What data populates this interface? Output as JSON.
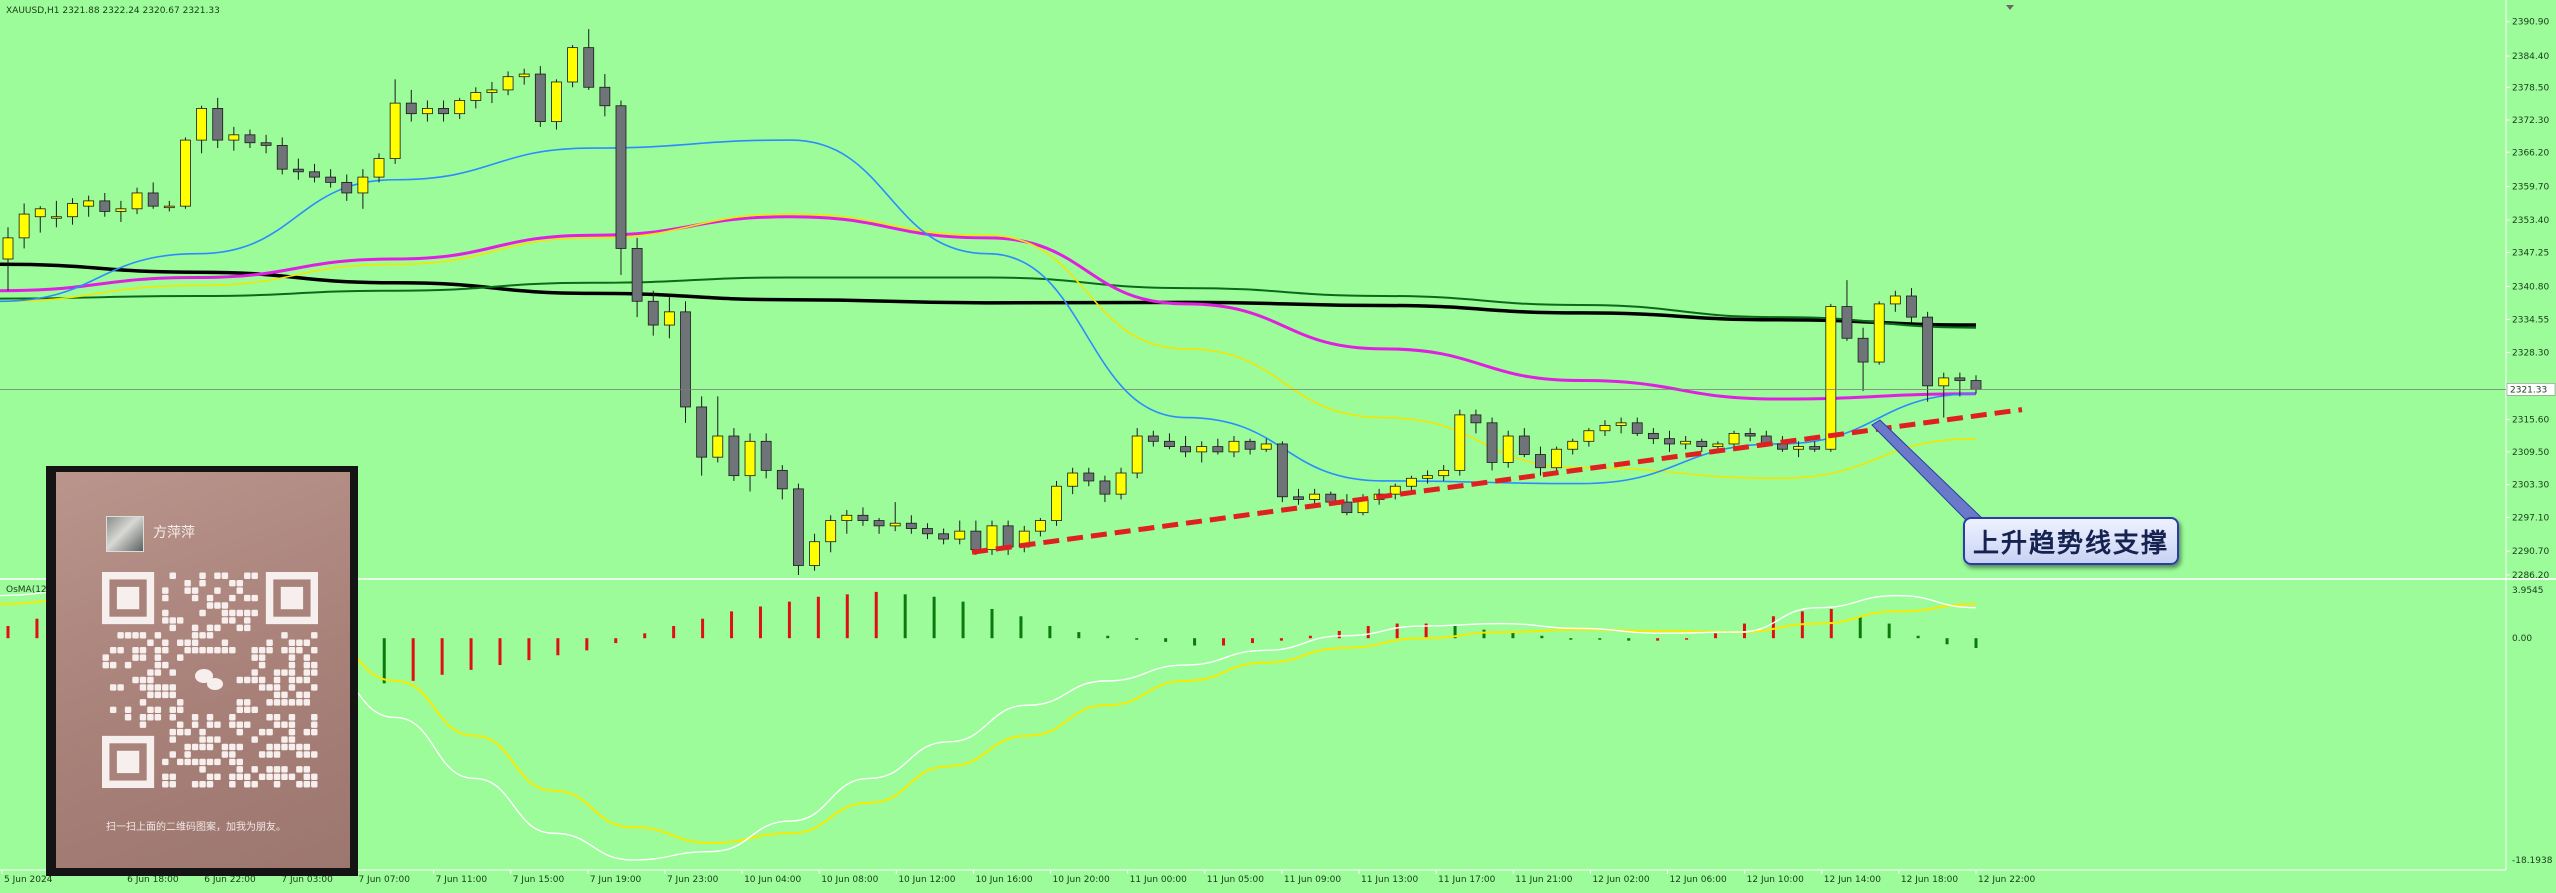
{
  "chart_data": [
    {
      "type": "candlestick",
      "symbol_header": "XAUUSD,H1  2321.88 2322.24 2320.67 2321.33",
      "ylim": [
        2286.2,
        2393.5
      ],
      "price_ticks": [
        "2390.90",
        "2384.40",
        "2378.50",
        "2372.30",
        "2366.20",
        "2359.70",
        "2353.40",
        "2347.25",
        "2340.80",
        "2334.55",
        "2328.30",
        "2315.60",
        "2309.50",
        "2303.30",
        "2297.10",
        "2290.70",
        "2286.20"
      ],
      "current_price": "2321.33",
      "current_price_value": 2321.33,
      "time_labels": [
        "5 Jun 2024",
        "6 Jun 18:00",
        "6 Jun 22:00",
        "7 Jun 03:00",
        "7 Jun 07:00",
        "7 Jun 11:00",
        "7 Jun 15:00",
        "7 Jun 19:00",
        "7 Jun 23:00",
        "10 Jun 04:00",
        "10 Jun 08:00",
        "10 Jun 12:00",
        "10 Jun 16:00",
        "10 Jun 20:00",
        "11 Jun 00:00",
        "11 Jun 05:00",
        "11 Jun 09:00",
        "11 Jun 13:00",
        "11 Jun 17:00",
        "11 Jun 21:00",
        "12 Jun 02:00",
        "12 Jun 06:00",
        "12 Jun 10:00",
        "12 Jun 14:00",
        "12 Jun 18:00",
        "12 Jun 22:00"
      ],
      "candles": [
        {
          "o": 2346.0,
          "h": 2352.0,
          "l": 2340.0,
          "c": 2350.0
        },
        {
          "o": 2350.0,
          "h": 2356.5,
          "l": 2348.0,
          "c": 2354.5
        },
        {
          "o": 2354.0,
          "h": 2356.0,
          "l": 2351.0,
          "c": 2355.5
        },
        {
          "o": 2354.0,
          "h": 2357.0,
          "l": 2352.0,
          "c": 2354.0
        },
        {
          "o": 2354.0,
          "h": 2357.5,
          "l": 2352.5,
          "c": 2356.5
        },
        {
          "o": 2356.0,
          "h": 2358.0,
          "l": 2354.0,
          "c": 2357.0
        },
        {
          "o": 2357.0,
          "h": 2358.5,
          "l": 2354.0,
          "c": 2355.0
        },
        {
          "o": 2355.0,
          "h": 2357.0,
          "l": 2353.0,
          "c": 2355.5
        },
        {
          "o": 2355.5,
          "h": 2359.5,
          "l": 2354.5,
          "c": 2358.5
        },
        {
          "o": 2358.5,
          "h": 2360.5,
          "l": 2355.5,
          "c": 2356.0
        },
        {
          "o": 2356.0,
          "h": 2357.0,
          "l": 2355.0,
          "c": 2356.0
        },
        {
          "o": 2356.0,
          "h": 2369.0,
          "l": 2355.5,
          "c": 2368.5
        },
        {
          "o": 2368.5,
          "h": 2375.0,
          "l": 2366.0,
          "c": 2374.5
        },
        {
          "o": 2374.5,
          "h": 2376.5,
          "l": 2367.0,
          "c": 2368.5
        },
        {
          "o": 2368.5,
          "h": 2371.0,
          "l": 2366.5,
          "c": 2369.5
        },
        {
          "o": 2369.5,
          "h": 2370.5,
          "l": 2367.0,
          "c": 2368.0
        },
        {
          "o": 2368.0,
          "h": 2369.5,
          "l": 2366.0,
          "c": 2367.5
        },
        {
          "o": 2367.5,
          "h": 2369.0,
          "l": 2362.0,
          "c": 2363.0
        },
        {
          "o": 2363.0,
          "h": 2365.0,
          "l": 2361.0,
          "c": 2362.5
        },
        {
          "o": 2362.5,
          "h": 2364.0,
          "l": 2360.5,
          "c": 2361.5
        },
        {
          "o": 2361.5,
          "h": 2363.0,
          "l": 2359.5,
          "c": 2360.5
        },
        {
          "o": 2360.5,
          "h": 2362.0,
          "l": 2357.0,
          "c": 2358.5
        },
        {
          "o": 2358.5,
          "h": 2363.0,
          "l": 2355.5,
          "c": 2361.5
        },
        {
          "o": 2361.5,
          "h": 2366.0,
          "l": 2360.5,
          "c": 2365.0
        },
        {
          "o": 2365.0,
          "h": 2380.0,
          "l": 2364.0,
          "c": 2375.5
        },
        {
          "o": 2375.5,
          "h": 2378.0,
          "l": 2372.0,
          "c": 2373.5
        },
        {
          "o": 2373.5,
          "h": 2376.0,
          "l": 2372.0,
          "c": 2374.5
        },
        {
          "o": 2374.5,
          "h": 2376.0,
          "l": 2372.0,
          "c": 2373.5
        },
        {
          "o": 2373.5,
          "h": 2376.5,
          "l": 2372.5,
          "c": 2376.0
        },
        {
          "o": 2376.0,
          "h": 2378.5,
          "l": 2374.5,
          "c": 2377.5
        },
        {
          "o": 2377.5,
          "h": 2379.5,
          "l": 2375.5,
          "c": 2378.0
        },
        {
          "o": 2378.0,
          "h": 2381.5,
          "l": 2377.0,
          "c": 2380.5
        },
        {
          "o": 2380.5,
          "h": 2382.0,
          "l": 2379.0,
          "c": 2381.0
        },
        {
          "o": 2381.0,
          "h": 2382.5,
          "l": 2371.0,
          "c": 2372.0
        },
        {
          "o": 2372.0,
          "h": 2380.0,
          "l": 2370.5,
          "c": 2379.5
        },
        {
          "o": 2379.5,
          "h": 2386.5,
          "l": 2378.5,
          "c": 2386.0
        },
        {
          "o": 2386.0,
          "h": 2389.5,
          "l": 2378.0,
          "c": 2378.5
        },
        {
          "o": 2378.5,
          "h": 2381.0,
          "l": 2373.0,
          "c": 2375.0
        },
        {
          "o": 2375.0,
          "h": 2376.0,
          "l": 2343.0,
          "c": 2348.0
        },
        {
          "o": 2348.0,
          "h": 2350.0,
          "l": 2335.0,
          "c": 2338.0
        },
        {
          "o": 2338.0,
          "h": 2340.0,
          "l": 2331.5,
          "c": 2333.5
        },
        {
          "o": 2333.5,
          "h": 2339.0,
          "l": 2331.0,
          "c": 2336.0
        },
        {
          "o": 2336.0,
          "h": 2338.0,
          "l": 2315.0,
          "c": 2318.0
        },
        {
          "o": 2318.0,
          "h": 2320.0,
          "l": 2305.0,
          "c": 2308.5
        },
        {
          "o": 2308.5,
          "h": 2320.0,
          "l": 2307.5,
          "c": 2312.5
        },
        {
          "o": 2312.5,
          "h": 2314.0,
          "l": 2304.0,
          "c": 2305.0
        },
        {
          "o": 2305.0,
          "h": 2313.0,
          "l": 2302.0,
          "c": 2311.5
        },
        {
          "o": 2311.5,
          "h": 2313.0,
          "l": 2304.5,
          "c": 2306.0
        },
        {
          "o": 2306.0,
          "h": 2307.0,
          "l": 2300.5,
          "c": 2302.5
        },
        {
          "o": 2302.5,
          "h": 2303.5,
          "l": 2286.2,
          "c": 2288.0
        },
        {
          "o": 2288.0,
          "h": 2294.0,
          "l": 2287.0,
          "c": 2292.5
        },
        {
          "o": 2292.5,
          "h": 2297.5,
          "l": 2290.5,
          "c": 2296.5
        },
        {
          "o": 2296.5,
          "h": 2298.5,
          "l": 2294.0,
          "c": 2297.5
        },
        {
          "o": 2297.5,
          "h": 2299.0,
          "l": 2295.5,
          "c": 2296.5
        },
        {
          "o": 2296.5,
          "h": 2297.0,
          "l": 2294.0,
          "c": 2295.5
        },
        {
          "o": 2295.5,
          "h": 2300.0,
          "l": 2294.5,
          "c": 2296.0
        },
        {
          "o": 2296.0,
          "h": 2297.5,
          "l": 2294.0,
          "c": 2295.0
        },
        {
          "o": 2295.0,
          "h": 2296.0,
          "l": 2293.0,
          "c": 2294.0
        },
        {
          "o": 2294.0,
          "h": 2295.0,
          "l": 2292.0,
          "c": 2293.0
        },
        {
          "o": 2293.0,
          "h": 2296.5,
          "l": 2292.0,
          "c": 2294.5
        },
        {
          "o": 2294.5,
          "h": 2296.5,
          "l": 2290.0,
          "c": 2291.0
        },
        {
          "o": 2291.0,
          "h": 2296.5,
          "l": 2290.0,
          "c": 2295.5
        },
        {
          "o": 2295.5,
          "h": 2296.5,
          "l": 2290.0,
          "c": 2291.5
        },
        {
          "o": 2291.5,
          "h": 2295.5,
          "l": 2290.5,
          "c": 2294.5
        },
        {
          "o": 2294.5,
          "h": 2297.0,
          "l": 2293.5,
          "c": 2296.5
        },
        {
          "o": 2296.5,
          "h": 2304.0,
          "l": 2295.5,
          "c": 2303.0
        },
        {
          "o": 2303.0,
          "h": 2306.5,
          "l": 2301.5,
          "c": 2305.5
        },
        {
          "o": 2305.5,
          "h": 2306.5,
          "l": 2303.0,
          "c": 2304.0
        },
        {
          "o": 2304.0,
          "h": 2305.0,
          "l": 2300.0,
          "c": 2301.5
        },
        {
          "o": 2301.5,
          "h": 2306.5,
          "l": 2300.5,
          "c": 2305.5
        },
        {
          "o": 2305.5,
          "h": 2314.0,
          "l": 2304.5,
          "c": 2312.5
        },
        {
          "o": 2312.5,
          "h": 2313.5,
          "l": 2310.5,
          "c": 2311.5
        },
        {
          "o": 2311.5,
          "h": 2313.0,
          "l": 2310.0,
          "c": 2310.5
        },
        {
          "o": 2310.5,
          "h": 2312.5,
          "l": 2308.5,
          "c": 2309.5
        },
        {
          "o": 2309.5,
          "h": 2311.5,
          "l": 2307.5,
          "c": 2310.5
        },
        {
          "o": 2310.5,
          "h": 2312.0,
          "l": 2309.0,
          "c": 2309.5
        },
        {
          "o": 2309.5,
          "h": 2312.5,
          "l": 2308.5,
          "c": 2311.5
        },
        {
          "o": 2311.5,
          "h": 2312.0,
          "l": 2309.0,
          "c": 2310.0
        },
        {
          "o": 2310.0,
          "h": 2312.0,
          "l": 2309.5,
          "c": 2311.0
        },
        {
          "o": 2311.0,
          "h": 2311.5,
          "l": 2300.0,
          "c": 2301.0
        },
        {
          "o": 2301.0,
          "h": 2302.5,
          "l": 2299.5,
          "c": 2300.5
        },
        {
          "o": 2300.5,
          "h": 2302.5,
          "l": 2299.5,
          "c": 2301.5
        },
        {
          "o": 2301.5,
          "h": 2302.0,
          "l": 2299.5,
          "c": 2300.0
        },
        {
          "o": 2300.0,
          "h": 2301.5,
          "l": 2297.5,
          "c": 2298.0
        },
        {
          "o": 2298.0,
          "h": 2301.5,
          "l": 2297.5,
          "c": 2300.5
        },
        {
          "o": 2300.5,
          "h": 2302.5,
          "l": 2299.5,
          "c": 2301.5
        },
        {
          "o": 2301.5,
          "h": 2303.5,
          "l": 2300.5,
          "c": 2303.0
        },
        {
          "o": 2303.0,
          "h": 2305.0,
          "l": 2302.0,
          "c": 2304.5
        },
        {
          "o": 2304.5,
          "h": 2306.0,
          "l": 2303.5,
          "c": 2305.0
        },
        {
          "o": 2305.0,
          "h": 2307.0,
          "l": 2304.0,
          "c": 2306.0
        },
        {
          "o": 2306.0,
          "h": 2317.5,
          "l": 2305.0,
          "c": 2316.5
        },
        {
          "o": 2316.5,
          "h": 2317.5,
          "l": 2313.0,
          "c": 2315.0
        },
        {
          "o": 2315.0,
          "h": 2316.0,
          "l": 2306.0,
          "c": 2307.5
        },
        {
          "o": 2307.5,
          "h": 2313.5,
          "l": 2306.5,
          "c": 2312.5
        },
        {
          "o": 2312.5,
          "h": 2314.0,
          "l": 2308.5,
          "c": 2309.0
        },
        {
          "o": 2309.0,
          "h": 2310.5,
          "l": 2305.0,
          "c": 2306.5
        },
        {
          "o": 2306.5,
          "h": 2310.5,
          "l": 2305.5,
          "c": 2310.0
        },
        {
          "o": 2310.0,
          "h": 2312.0,
          "l": 2309.0,
          "c": 2311.5
        },
        {
          "o": 2311.5,
          "h": 2314.0,
          "l": 2310.5,
          "c": 2313.5
        },
        {
          "o": 2313.5,
          "h": 2315.5,
          "l": 2312.5,
          "c": 2314.5
        },
        {
          "o": 2314.5,
          "h": 2316.0,
          "l": 2313.0,
          "c": 2315.0
        },
        {
          "o": 2315.0,
          "h": 2316.0,
          "l": 2312.5,
          "c": 2313.0
        },
        {
          "o": 2313.0,
          "h": 2314.0,
          "l": 2311.0,
          "c": 2312.0
        },
        {
          "o": 2312.0,
          "h": 2313.5,
          "l": 2309.5,
          "c": 2311.0
        },
        {
          "o": 2311.0,
          "h": 2312.5,
          "l": 2310.0,
          "c": 2311.5
        },
        {
          "o": 2311.5,
          "h": 2312.0,
          "l": 2309.5,
          "c": 2310.5
        },
        {
          "o": 2310.5,
          "h": 2311.5,
          "l": 2309.5,
          "c": 2311.0
        },
        {
          "o": 2311.0,
          "h": 2313.5,
          "l": 2310.5,
          "c": 2313.0
        },
        {
          "o": 2313.0,
          "h": 2314.0,
          "l": 2311.5,
          "c": 2312.5
        },
        {
          "o": 2312.5,
          "h": 2313.5,
          "l": 2310.5,
          "c": 2311.0
        },
        {
          "o": 2311.0,
          "h": 2312.5,
          "l": 2309.5,
          "c": 2310.0
        },
        {
          "o": 2310.0,
          "h": 2311.5,
          "l": 2308.5,
          "c": 2310.5
        },
        {
          "o": 2310.5,
          "h": 2311.5,
          "l": 2309.5,
          "c": 2310.0
        },
        {
          "o": 2310.0,
          "h": 2337.5,
          "l": 2309.5,
          "c": 2337.0
        },
        {
          "o": 2337.0,
          "h": 2342.0,
          "l": 2330.5,
          "c": 2331.0
        },
        {
          "o": 2331.0,
          "h": 2333.0,
          "l": 2321.0,
          "c": 2326.5
        },
        {
          "o": 2326.5,
          "h": 2338.0,
          "l": 2326.0,
          "c": 2337.5
        },
        {
          "o": 2337.5,
          "h": 2340.0,
          "l": 2336.0,
          "c": 2339.0
        },
        {
          "o": 2339.0,
          "h": 2340.5,
          "l": 2334.0,
          "c": 2335.0
        },
        {
          "o": 2335.0,
          "h": 2336.0,
          "l": 2319.0,
          "c": 2322.0
        },
        {
          "o": 2322.0,
          "h": 2324.5,
          "l": 2316.0,
          "c": 2323.5
        },
        {
          "o": 2323.5,
          "h": 2324.5,
          "l": 2320.0,
          "c": 2323.0
        },
        {
          "o": 2323.0,
          "h": 2324.0,
          "l": 2320.5,
          "c": 2321.33
        }
      ],
      "moving_averages": [
        {
          "name": "",
          "color": "#000000",
          "values": [
            2345.0,
            2343.5,
            2341.5,
            2339.5,
            2338.3,
            2337.7,
            2337.8,
            2337.2,
            2335.8,
            2334.5,
            2333.5
          ]
        },
        {
          "name": "",
          "color": "#0a6a1a",
          "values": [
            2338.5,
            2339.0,
            2340.0,
            2341.5,
            2342.5,
            2342.5,
            2340.5,
            2339.0,
            2337.3,
            2335.0,
            2333.0
          ]
        },
        {
          "name": "",
          "color": "#e020e0",
          "values": [
            2340.0,
            2342.5,
            2346.0,
            2350.5,
            2354.0,
            2350.0,
            2337.5,
            2329.0,
            2323.0,
            2319.5,
            2320.5
          ]
        },
        {
          "name": "",
          "color": "#f2e600",
          "values": [
            2338.0,
            2341.0,
            2345.0,
            2350.0,
            2354.5,
            2350.5,
            2329.0,
            2316.0,
            2306.5,
            2304.5,
            2312.0
          ]
        },
        {
          "name": "",
          "color": "#2a8cff",
          "values": [
            2338.0,
            2347.0,
            2361.0,
            2367.0,
            2368.5,
            2347.0,
            2316.0,
            2304.0,
            2303.5,
            2311.0,
            2320.5
          ]
        }
      ],
      "trendline": {
        "color": "#e02020",
        "style": "dashed",
        "from_price": 2290.5,
        "to_price": 2317.5
      },
      "annotation": "上升趋势线支撑"
    },
    {
      "type": "macd",
      "label": "OsMA(12,26,9) ...",
      "value_ticks": [
        "3.9545",
        "0.00",
        "-18.1938"
      ],
      "ylim": [
        -18.1938,
        3.9545
      ],
      "histogram": [
        1.0,
        1.6,
        2.2,
        1.4,
        0.0,
        0.0,
        -0.2,
        -0.3,
        -0.5,
        -1.0,
        -1.6,
        -2.5,
        -3.2,
        -3.7,
        -3.5,
        -3.0,
        -2.6,
        -2.2,
        -1.8,
        -1.4,
        -1.0,
        -0.4,
        0.4,
        1.0,
        1.6,
        2.2,
        2.6,
        3.0,
        3.4,
        3.6,
        3.8,
        3.6,
        3.4,
        3.0,
        2.4,
        1.8,
        1.0,
        0.5,
        0.2,
        0.0,
        -0.3,
        -0.6,
        -0.6,
        -0.4,
        -0.2,
        0.2,
        0.6,
        1.0,
        1.2,
        1.2,
        1.0,
        0.7,
        0.5,
        0.2,
        0.0,
        -0.1,
        -0.2,
        -0.2,
        -0.1,
        0.4,
        1.2,
        1.8,
        2.2,
        2.4,
        1.8,
        1.2,
        0.2,
        -0.5,
        -0.8
      ],
      "macd_line": [
        3.5,
        3.9,
        3.0,
        1.5,
        -2.0,
        -6.5,
        -11.5,
        -16.0,
        -18.19,
        -17.5,
        -15.0,
        -11.5,
        -8.5,
        -5.5,
        -3.5,
        -2.2,
        -1.0,
        0.2,
        1.0,
        1.2,
        0.8,
        0.4,
        0.5,
        2.5,
        3.5,
        2.5
      ],
      "signal_line": [
        2.8,
        3.2,
        3.6,
        2.8,
        0.5,
        -3.5,
        -8.0,
        -12.5,
        -15.5,
        -16.8,
        -16.0,
        -13.5,
        -10.5,
        -8.0,
        -5.5,
        -3.5,
        -2.0,
        -0.8,
        0.0,
        0.5,
        0.7,
        0.6,
        0.5,
        1.2,
        2.2,
        2.8
      ]
    }
  ],
  "qr_card": {
    "name": "方萍萍",
    "caption": "扫一扫上面的二维码图案，加我为朋友。"
  }
}
